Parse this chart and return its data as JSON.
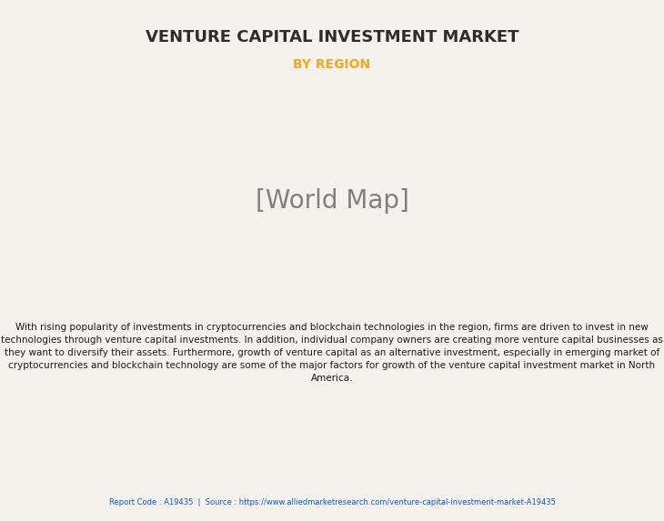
{
  "title": "VENTURE CAPITAL INVESTMENT MARKET",
  "subtitle": "BY REGION",
  "subtitle_color": "#F5A623",
  "title_color": "#2d2d2d",
  "bg_color": "#F5F2EE",
  "body_text": "With rising popularity of investments in cryptocurrencies and blockchain technologies in the region, firms are driven to invest in new technologies through venture capital investments. In addition, individual company owners are creating more venture capital businesses as they want to diversify their assets. Furthermore, growth of venture capital as an alternative investment, especially in emerging market of cryptocurrencies and blockchain technology are some of the major factors for growth of the venture capital investment market in North America.",
  "footer_text": "Report Code : A19435  |  Source : https://www.alliedmarketresearch.com/venture-capital-investment-market-A19435",
  "footer_color": "#1155CC",
  "green_color": "#7EC8A0",
  "gold_color": "#C9A84C",
  "white_color": "#FFFFFF",
  "border_color": "#7EB8E0",
  "shadow_color": "#9BA5B0",
  "divider_color": "#CCCCCC"
}
